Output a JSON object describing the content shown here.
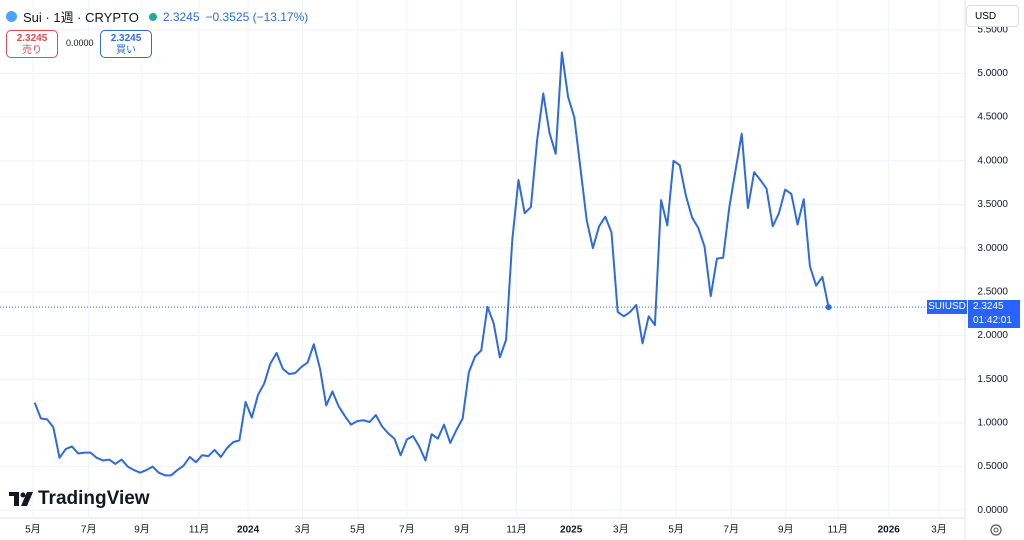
{
  "header": {
    "symbol": "Sui · 1週 · CRYPTO",
    "last": "2.3245",
    "change": "−0.3525 (−13.17%)"
  },
  "trade": {
    "sell_price": "2.3245",
    "sell_label": "売り",
    "spread": "0.0000",
    "buy_price": "2.3245",
    "buy_label": "買い"
  },
  "currency": "USD",
  "price_tag": {
    "symbol": "SUIUSD",
    "price": "2.3245",
    "countdown": "01:42:01"
  },
  "logo": "TradingView",
  "chart_data": {
    "type": "line",
    "color": "#2f6bdb",
    "grid": true,
    "x": [
      0,
      1,
      2,
      3,
      4,
      5,
      6,
      7,
      8,
      9,
      10,
      11,
      12,
      13,
      14,
      15,
      16,
      17,
      18,
      19,
      20,
      21,
      22,
      23,
      24,
      25,
      26,
      27,
      28,
      29,
      30,
      31,
      32,
      33,
      34,
      35,
      36,
      37,
      38,
      39,
      40,
      41,
      42,
      43,
      44,
      45,
      46,
      47,
      48,
      49,
      50,
      51,
      52,
      53,
      54,
      55,
      56,
      57,
      58,
      59,
      60,
      61,
      62,
      63,
      64,
      65,
      66,
      67,
      68,
      69,
      70,
      71,
      72,
      73,
      74,
      75,
      76,
      77,
      78,
      79,
      80,
      81,
      82,
      83,
      84,
      85,
      86,
      87,
      88,
      89,
      90,
      91,
      92,
      93,
      94,
      95,
      96,
      97,
      98,
      99,
      100,
      101,
      102,
      103,
      104,
      105,
      106,
      107,
      108,
      109,
      110,
      111,
      112,
      113,
      114,
      115,
      116,
      117,
      118,
      119,
      120,
      121,
      122,
      123,
      124,
      125,
      126,
      127,
      128
    ],
    "values": [
      1.23,
      1.05,
      1.04,
      0.95,
      0.6,
      0.7,
      0.73,
      0.65,
      0.66,
      0.66,
      0.6,
      0.57,
      0.58,
      0.53,
      0.58,
      0.5,
      0.46,
      0.43,
      0.46,
      0.5,
      0.43,
      0.4,
      0.4,
      0.46,
      0.51,
      0.61,
      0.55,
      0.63,
      0.62,
      0.69,
      0.61,
      0.71,
      0.78,
      0.8,
      1.24,
      1.06,
      1.32,
      1.45,
      1.68,
      1.8,
      1.62,
      1.56,
      1.57,
      1.64,
      1.69,
      1.9,
      1.62,
      1.2,
      1.36,
      1.19,
      1.08,
      0.98,
      1.02,
      1.03,
      1.01,
      1.09,
      0.96,
      0.88,
      0.82,
      0.63,
      0.81,
      0.85,
      0.73,
      0.57,
      0.87,
      0.82,
      0.98,
      0.77,
      0.92,
      1.05,
      1.58,
      1.76,
      1.83,
      2.33,
      2.14,
      1.75,
      1.95,
      3.09,
      3.78,
      3.4,
      3.47,
      4.23,
      4.77,
      4.32,
      4.08,
      5.24,
      4.73,
      4.5,
      3.91,
      3.32,
      3.0,
      3.25,
      3.36,
      3.18,
      2.27,
      2.22,
      2.27,
      2.35,
      1.91,
      2.22,
      2.12,
      3.55,
      3.26,
      4.0,
      3.95,
      3.6,
      3.35,
      3.23,
      3.02,
      2.45,
      2.88,
      2.89,
      3.47,
      3.89,
      4.31,
      3.46,
      3.87,
      3.78,
      3.68,
      3.25,
      3.4,
      3.67,
      3.62,
      3.27,
      3.56,
      2.79,
      2.57,
      2.67,
      2.3245
    ],
    "xlim": [
      -5.6,
      150
    ],
    "xticks": [
      {
        "value": -0.3,
        "label": "5月"
      },
      {
        "value": 8.7,
        "label": "7月"
      },
      {
        "value": 17.3,
        "label": "9月"
      },
      {
        "value": 26.5,
        "label": "11月"
      },
      {
        "value": 34.4,
        "label": "2024"
      },
      {
        "value": 43.2,
        "label": "3月"
      },
      {
        "value": 52.1,
        "label": "5月"
      },
      {
        "value": 60.0,
        "label": "7月"
      },
      {
        "value": 68.9,
        "label": "9月"
      },
      {
        "value": 77.7,
        "label": "11月"
      },
      {
        "value": 86.5,
        "label": "2025"
      },
      {
        "value": 94.5,
        "label": "3月"
      },
      {
        "value": 103.4,
        "label": "5月"
      },
      {
        "value": 112.3,
        "label": "7月"
      },
      {
        "value": 121.1,
        "label": "9月"
      },
      {
        "value": 129.5,
        "label": "11月"
      },
      {
        "value": 137.7,
        "label": "2026"
      },
      {
        "value": 145.8,
        "label": "3月"
      }
    ],
    "ylim": [
      -0.1,
      5.84
    ],
    "yticks": [
      {
        "value": 0,
        "label": "0.0000"
      },
      {
        "value": 0.5,
        "label": "0.5000"
      },
      {
        "value": 1,
        "label": "1.0000"
      },
      {
        "value": 1.5,
        "label": "1.5000"
      },
      {
        "value": 2,
        "label": "2.0000"
      },
      {
        "value": 2.5,
        "label": "2.5000"
      },
      {
        "value": 3,
        "label": "3.0000"
      },
      {
        "value": 3.5,
        "label": "3.5000"
      },
      {
        "value": 4,
        "label": "4.0000"
      },
      {
        "value": 4.5,
        "label": "4.5000"
      },
      {
        "value": 5,
        "label": "5.0000"
      },
      {
        "value": 5.5,
        "label": "5.5000"
      }
    ]
  }
}
